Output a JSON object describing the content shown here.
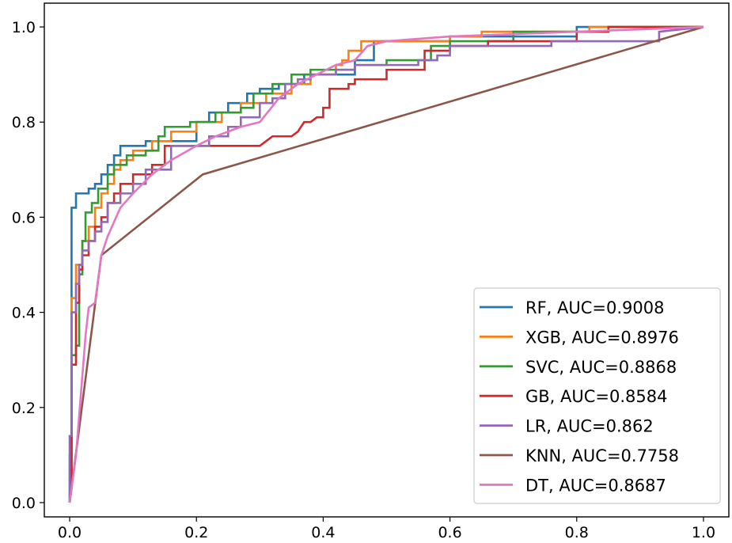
{
  "chart_data": {
    "type": "line",
    "title": "",
    "xlabel": "",
    "ylabel": "",
    "xlim": [
      -0.04,
      1.04
    ],
    "ylim": [
      -0.03,
      1.05
    ],
    "xticks": [
      0.0,
      0.2,
      0.4,
      0.6,
      0.8,
      1.0
    ],
    "yticks": [
      0.0,
      0.2,
      0.4,
      0.6,
      0.8,
      1.0
    ],
    "xtick_labels": [
      "0.0",
      "0.2",
      "0.4",
      "0.6",
      "0.8",
      "1.0"
    ],
    "ytick_labels": [
      "0.0",
      "0.2",
      "0.4",
      "0.6",
      "0.8",
      "1.0"
    ],
    "grid": false,
    "legend_position": "bottom-right",
    "series": [
      {
        "name": "RF, AUC=0.9008",
        "color": "#1f77b4",
        "points": [
          [
            0,
            0
          ],
          [
            0,
            0.1
          ],
          [
            0.003,
            0.1
          ],
          [
            0.003,
            0.62
          ],
          [
            0.01,
            0.62
          ],
          [
            0.01,
            0.65
          ],
          [
            0.03,
            0.65
          ],
          [
            0.03,
            0.66
          ],
          [
            0.04,
            0.66
          ],
          [
            0.04,
            0.67
          ],
          [
            0.05,
            0.67
          ],
          [
            0.05,
            0.69
          ],
          [
            0.06,
            0.69
          ],
          [
            0.06,
            0.71
          ],
          [
            0.07,
            0.71
          ],
          [
            0.07,
            0.73
          ],
          [
            0.08,
            0.73
          ],
          [
            0.08,
            0.75
          ],
          [
            0.12,
            0.75
          ],
          [
            0.12,
            0.76
          ],
          [
            0.2,
            0.76
          ],
          [
            0.2,
            0.8
          ],
          [
            0.22,
            0.8
          ],
          [
            0.22,
            0.82
          ],
          [
            0.25,
            0.82
          ],
          [
            0.25,
            0.84
          ],
          [
            0.28,
            0.84
          ],
          [
            0.28,
            0.86
          ],
          [
            0.3,
            0.86
          ],
          [
            0.3,
            0.87
          ],
          [
            0.33,
            0.87
          ],
          [
            0.33,
            0.88
          ],
          [
            0.37,
            0.88
          ],
          [
            0.37,
            0.9
          ],
          [
            0.45,
            0.9
          ],
          [
            0.45,
            0.93
          ],
          [
            0.48,
            0.93
          ],
          [
            0.48,
            0.97
          ],
          [
            0.6,
            0.97
          ],
          [
            0.6,
            0.98
          ],
          [
            0.8,
            0.98
          ],
          [
            0.8,
            1.0
          ],
          [
            1.0,
            1.0
          ]
        ]
      },
      {
        "name": "XGB, AUC=0.8976",
        "color": "#ff7f0e",
        "points": [
          [
            0,
            0
          ],
          [
            0.003,
            0.05
          ],
          [
            0.003,
            0.43
          ],
          [
            0.01,
            0.43
          ],
          [
            0.01,
            0.5
          ],
          [
            0.02,
            0.5
          ],
          [
            0.02,
            0.55
          ],
          [
            0.03,
            0.55
          ],
          [
            0.03,
            0.58
          ],
          [
            0.04,
            0.58
          ],
          [
            0.04,
            0.62
          ],
          [
            0.05,
            0.62
          ],
          [
            0.05,
            0.65
          ],
          [
            0.06,
            0.65
          ],
          [
            0.06,
            0.67
          ],
          [
            0.07,
            0.67
          ],
          [
            0.07,
            0.7
          ],
          [
            0.08,
            0.7
          ],
          [
            0.08,
            0.72
          ],
          [
            0.1,
            0.72
          ],
          [
            0.1,
            0.74
          ],
          [
            0.13,
            0.74
          ],
          [
            0.13,
            0.76
          ],
          [
            0.16,
            0.76
          ],
          [
            0.16,
            0.78
          ],
          [
            0.2,
            0.78
          ],
          [
            0.2,
            0.8
          ],
          [
            0.24,
            0.8
          ],
          [
            0.24,
            0.82
          ],
          [
            0.27,
            0.82
          ],
          [
            0.27,
            0.84
          ],
          [
            0.31,
            0.84
          ],
          [
            0.31,
            0.86
          ],
          [
            0.35,
            0.86
          ],
          [
            0.35,
            0.88
          ],
          [
            0.38,
            0.88
          ],
          [
            0.38,
            0.9
          ],
          [
            0.42,
            0.9
          ],
          [
            0.42,
            0.92
          ],
          [
            0.43,
            0.92
          ],
          [
            0.43,
            0.93
          ],
          [
            0.44,
            0.93
          ],
          [
            0.44,
            0.95
          ],
          [
            0.46,
            0.95
          ],
          [
            0.46,
            0.97
          ],
          [
            0.6,
            0.97
          ],
          [
            0.6,
            0.98
          ],
          [
            0.65,
            0.98
          ],
          [
            0.65,
            0.99
          ],
          [
            0.82,
            0.99
          ],
          [
            0.82,
            1.0
          ],
          [
            1.0,
            1.0
          ]
        ]
      },
      {
        "name": "SVC, AUC=0.8868",
        "color": "#2ca02c",
        "points": [
          [
            0,
            0
          ],
          [
            0.003,
            0.04
          ],
          [
            0.003,
            0.31
          ],
          [
            0.01,
            0.31
          ],
          [
            0.01,
            0.33
          ],
          [
            0.015,
            0.33
          ],
          [
            0.015,
            0.48
          ],
          [
            0.02,
            0.48
          ],
          [
            0.02,
            0.55
          ],
          [
            0.025,
            0.55
          ],
          [
            0.025,
            0.61
          ],
          [
            0.035,
            0.61
          ],
          [
            0.035,
            0.63
          ],
          [
            0.045,
            0.63
          ],
          [
            0.045,
            0.66
          ],
          [
            0.06,
            0.66
          ],
          [
            0.06,
            0.69
          ],
          [
            0.07,
            0.69
          ],
          [
            0.07,
            0.71
          ],
          [
            0.09,
            0.71
          ],
          [
            0.09,
            0.73
          ],
          [
            0.12,
            0.73
          ],
          [
            0.12,
            0.74
          ],
          [
            0.14,
            0.74
          ],
          [
            0.14,
            0.77
          ],
          [
            0.15,
            0.77
          ],
          [
            0.15,
            0.79
          ],
          [
            0.19,
            0.79
          ],
          [
            0.19,
            0.8
          ],
          [
            0.23,
            0.8
          ],
          [
            0.23,
            0.82
          ],
          [
            0.27,
            0.82
          ],
          [
            0.27,
            0.83
          ],
          [
            0.29,
            0.83
          ],
          [
            0.29,
            0.86
          ],
          [
            0.32,
            0.86
          ],
          [
            0.32,
            0.88
          ],
          [
            0.35,
            0.88
          ],
          [
            0.35,
            0.9
          ],
          [
            0.38,
            0.9
          ],
          [
            0.38,
            0.91
          ],
          [
            0.45,
            0.91
          ],
          [
            0.45,
            0.92
          ],
          [
            0.5,
            0.92
          ],
          [
            0.5,
            0.93
          ],
          [
            0.57,
            0.93
          ],
          [
            0.57,
            0.96
          ],
          [
            0.6,
            0.96
          ],
          [
            0.6,
            0.97
          ],
          [
            0.7,
            0.97
          ],
          [
            0.7,
            0.99
          ],
          [
            0.85,
            0.99
          ],
          [
            0.85,
            1.0
          ],
          [
            1.0,
            1.0
          ]
        ]
      },
      {
        "name": "GB, AUC=0.8584",
        "color": "#d62728",
        "points": [
          [
            0,
            0
          ],
          [
            0.003,
            0.03
          ],
          [
            0.003,
            0.29
          ],
          [
            0.01,
            0.29
          ],
          [
            0.01,
            0.42
          ],
          [
            0.015,
            0.42
          ],
          [
            0.015,
            0.49
          ],
          [
            0.02,
            0.49
          ],
          [
            0.02,
            0.52
          ],
          [
            0.03,
            0.52
          ],
          [
            0.03,
            0.55
          ],
          [
            0.04,
            0.55
          ],
          [
            0.04,
            0.58
          ],
          [
            0.05,
            0.58
          ],
          [
            0.05,
            0.6
          ],
          [
            0.06,
            0.6
          ],
          [
            0.06,
            0.63
          ],
          [
            0.07,
            0.63
          ],
          [
            0.07,
            0.65
          ],
          [
            0.08,
            0.65
          ],
          [
            0.08,
            0.67
          ],
          [
            0.1,
            0.67
          ],
          [
            0.1,
            0.69
          ],
          [
            0.13,
            0.69
          ],
          [
            0.13,
            0.71
          ],
          [
            0.15,
            0.71
          ],
          [
            0.15,
            0.75
          ],
          [
            0.22,
            0.75
          ],
          [
            0.3,
            0.75
          ],
          [
            0.32,
            0.77
          ],
          [
            0.35,
            0.77
          ],
          [
            0.36,
            0.78
          ],
          [
            0.37,
            0.8
          ],
          [
            0.38,
            0.8
          ],
          [
            0.39,
            0.81
          ],
          [
            0.4,
            0.81
          ],
          [
            0.4,
            0.83
          ],
          [
            0.41,
            0.83
          ],
          [
            0.41,
            0.87
          ],
          [
            0.44,
            0.87
          ],
          [
            0.44,
            0.88
          ],
          [
            0.45,
            0.88
          ],
          [
            0.45,
            0.89
          ],
          [
            0.5,
            0.89
          ],
          [
            0.5,
            0.91
          ],
          [
            0.56,
            0.91
          ],
          [
            0.56,
            0.95
          ],
          [
            0.6,
            0.95
          ],
          [
            0.6,
            0.96
          ],
          [
            0.66,
            0.96
          ],
          [
            0.66,
            0.97
          ],
          [
            0.8,
            0.97
          ],
          [
            0.8,
            0.99
          ],
          [
            0.85,
            0.99
          ],
          [
            0.85,
            1.0
          ],
          [
            1.0,
            1.0
          ]
        ]
      },
      {
        "name": "LR, AUC=0.862",
        "color": "#9467bd",
        "points": [
          [
            0,
            0
          ],
          [
            0,
            0.14
          ],
          [
            0.003,
            0.14
          ],
          [
            0.003,
            0.4
          ],
          [
            0.01,
            0.4
          ],
          [
            0.01,
            0.46
          ],
          [
            0.015,
            0.46
          ],
          [
            0.015,
            0.5
          ],
          [
            0.02,
            0.5
          ],
          [
            0.02,
            0.53
          ],
          [
            0.03,
            0.53
          ],
          [
            0.03,
            0.55
          ],
          [
            0.04,
            0.55
          ],
          [
            0.04,
            0.57
          ],
          [
            0.05,
            0.57
          ],
          [
            0.05,
            0.59
          ],
          [
            0.06,
            0.59
          ],
          [
            0.06,
            0.63
          ],
          [
            0.08,
            0.63
          ],
          [
            0.08,
            0.65
          ],
          [
            0.1,
            0.65
          ],
          [
            0.1,
            0.67
          ],
          [
            0.12,
            0.67
          ],
          [
            0.12,
            0.7
          ],
          [
            0.16,
            0.7
          ],
          [
            0.16,
            0.75
          ],
          [
            0.22,
            0.75
          ],
          [
            0.22,
            0.77
          ],
          [
            0.25,
            0.77
          ],
          [
            0.25,
            0.79
          ],
          [
            0.27,
            0.79
          ],
          [
            0.27,
            0.81
          ],
          [
            0.3,
            0.81
          ],
          [
            0.3,
            0.84
          ],
          [
            0.32,
            0.84
          ],
          [
            0.32,
            0.85
          ],
          [
            0.34,
            0.85
          ],
          [
            0.34,
            0.88
          ],
          [
            0.36,
            0.88
          ],
          [
            0.36,
            0.89
          ],
          [
            0.38,
            0.89
          ],
          [
            0.38,
            0.9
          ],
          [
            0.42,
            0.9
          ],
          [
            0.42,
            0.91
          ],
          [
            0.45,
            0.91
          ],
          [
            0.45,
            0.92
          ],
          [
            0.55,
            0.92
          ],
          [
            0.55,
            0.93
          ],
          [
            0.58,
            0.93
          ],
          [
            0.58,
            0.94
          ],
          [
            0.6,
            0.94
          ],
          [
            0.6,
            0.96
          ],
          [
            0.76,
            0.96
          ],
          [
            0.76,
            0.97
          ],
          [
            0.93,
            0.97
          ],
          [
            0.93,
            0.99
          ],
          [
            1.0,
            1.0
          ]
        ]
      },
      {
        "name": "KNN, AUC=0.7758",
        "color": "#8c564b",
        "points": [
          [
            0,
            0
          ],
          [
            0.05,
            0.52
          ],
          [
            0.21,
            0.69
          ],
          [
            1.0,
            1.0
          ]
        ]
      },
      {
        "name": "DT, AUC=0.8687",
        "color": "#e377c2",
        "points": [
          [
            0,
            0
          ],
          [
            0.01,
            0.1
          ],
          [
            0.025,
            0.35
          ],
          [
            0.03,
            0.41
          ],
          [
            0.04,
            0.42
          ],
          [
            0.05,
            0.52
          ],
          [
            0.06,
            0.56
          ],
          [
            0.08,
            0.62
          ],
          [
            0.1,
            0.65
          ],
          [
            0.13,
            0.69
          ],
          [
            0.16,
            0.72
          ],
          [
            0.2,
            0.75
          ],
          [
            0.23,
            0.77
          ],
          [
            0.27,
            0.79
          ],
          [
            0.3,
            0.8
          ],
          [
            0.33,
            0.85
          ],
          [
            0.36,
            0.88
          ],
          [
            0.42,
            0.92
          ],
          [
            0.45,
            0.93
          ],
          [
            0.47,
            0.96
          ],
          [
            0.5,
            0.97
          ],
          [
            0.6,
            0.98
          ],
          [
            0.8,
            0.99
          ],
          [
            1.0,
            1.0
          ]
        ]
      }
    ]
  }
}
